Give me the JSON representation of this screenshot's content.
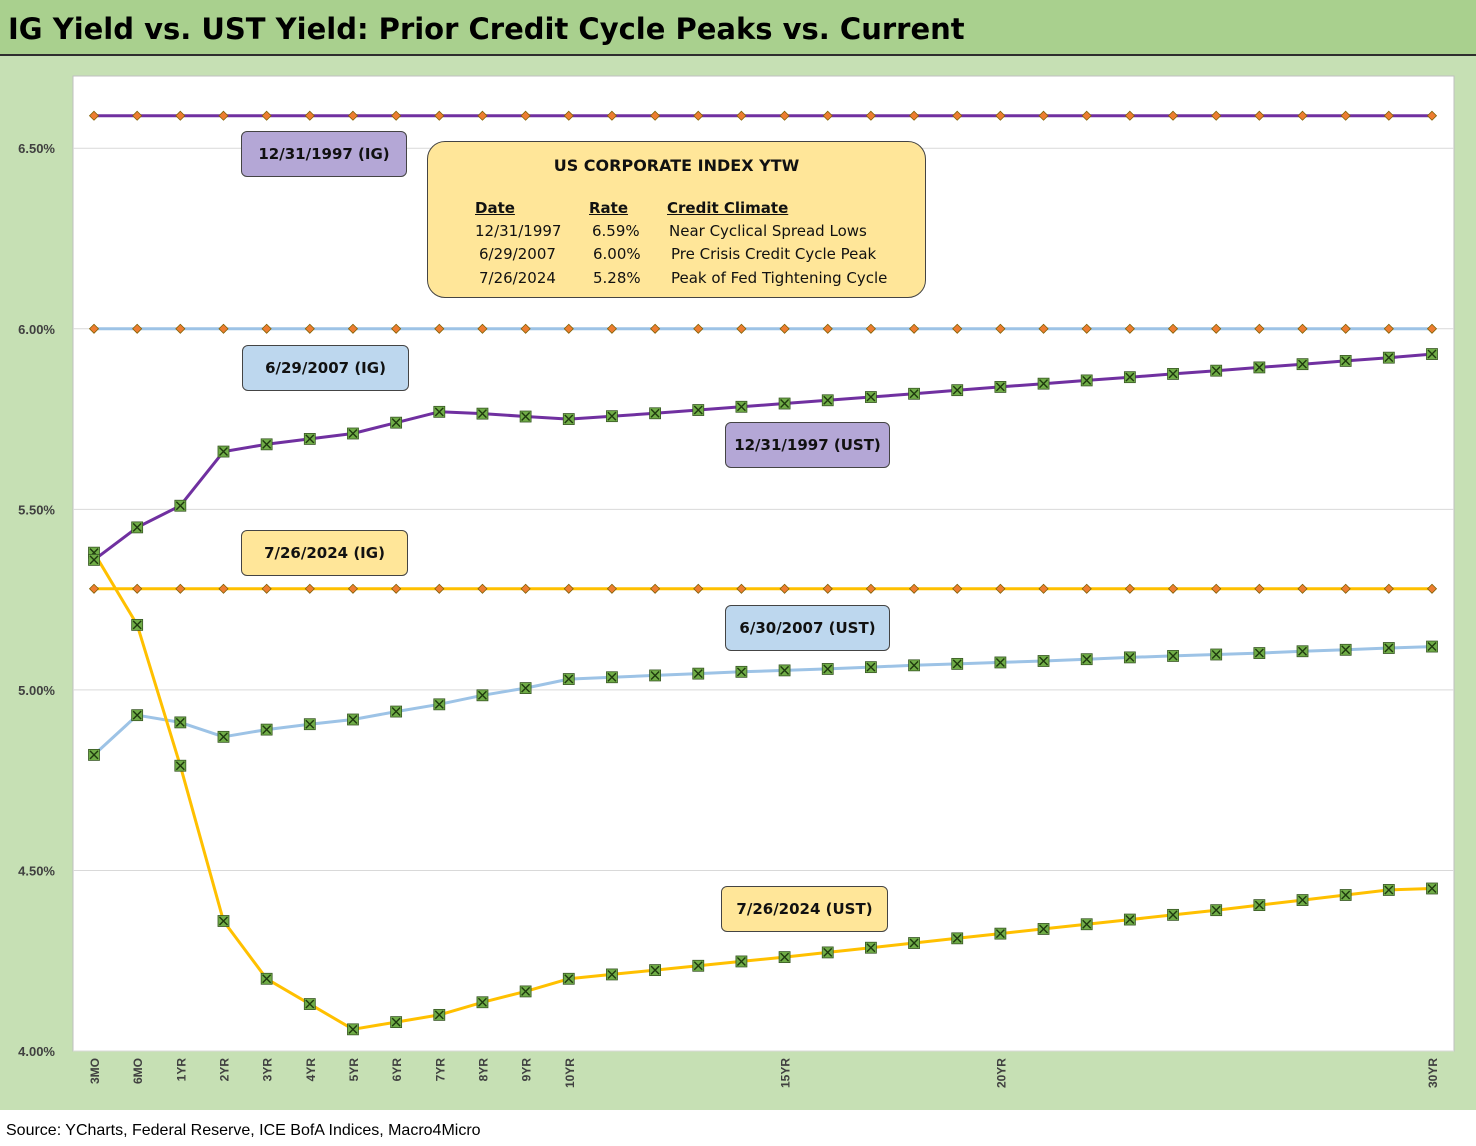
{
  "title": "IG Yield vs. UST Yield: Prior Credit Cycle Peaks vs. Current",
  "source": "Source: YCharts, Federal Reserve, ICE BofA Indices, Macro4Micro",
  "info_box": {
    "title": "US CORPORATE INDEX YTW",
    "headers": [
      "Date",
      "Rate",
      "Credit Climate"
    ],
    "rows": [
      {
        "date": "12/31/1997",
        "rate": "6.59%",
        "climate": "Near Cyclical Spread Lows"
      },
      {
        "date": "6/29/2007",
        "rate": "6.00%",
        "climate": "Pre Crisis Credit Cycle Peak"
      },
      {
        "date": "7/26/2024",
        "rate": "5.28%",
        "climate": "Peak of Fed Tightening Cycle"
      }
    ]
  },
  "chart_data": {
    "type": "line",
    "x": [
      0.25,
      0.5,
      1,
      2,
      3,
      4,
      5,
      6,
      7,
      8,
      9,
      10,
      11,
      12,
      13,
      14,
      15,
      16,
      17,
      18,
      19,
      20,
      21,
      22,
      23,
      24,
      25,
      26,
      27,
      28,
      29,
      30
    ],
    "x_tick_labels": [
      {
        "x": 0.25,
        "label": "3MO"
      },
      {
        "x": 0.5,
        "label": "6MO"
      },
      {
        "x": 1,
        "label": "1YR"
      },
      {
        "x": 2,
        "label": "2YR"
      },
      {
        "x": 3,
        "label": "3YR"
      },
      {
        "x": 4,
        "label": "4YR"
      },
      {
        "x": 5,
        "label": "5YR"
      },
      {
        "x": 6,
        "label": "6YR"
      },
      {
        "x": 7,
        "label": "7YR"
      },
      {
        "x": 8,
        "label": "8YR"
      },
      {
        "x": 9,
        "label": "9YR"
      },
      {
        "x": 10,
        "label": "10YR"
      },
      {
        "x": 15,
        "label": "15YR"
      },
      {
        "x": 20,
        "label": "20YR"
      },
      {
        "x": 30,
        "label": "30YR"
      }
    ],
    "ylim": [
      4.0,
      6.7
    ],
    "y_ticks": [
      4.0,
      4.5,
      5.0,
      5.5,
      6.0,
      6.5
    ],
    "y_tick_labels": [
      "4.00%",
      "4.50%",
      "5.00%",
      "5.50%",
      "6.00%",
      "6.50%"
    ],
    "grid": "horizontal",
    "series": [
      {
        "name": "12/31/1997 (IG)",
        "color": "#7030a0",
        "marker": "diamond",
        "values": [
          6.59,
          6.59,
          6.59,
          6.59,
          6.59,
          6.59,
          6.59,
          6.59,
          6.59,
          6.59,
          6.59,
          6.59,
          6.59,
          6.59,
          6.59,
          6.59,
          6.59,
          6.59,
          6.59,
          6.59,
          6.59,
          6.59,
          6.59,
          6.59,
          6.59,
          6.59,
          6.59,
          6.59,
          6.59,
          6.59,
          6.59,
          6.59
        ]
      },
      {
        "name": "6/29/2007 (IG)",
        "color": "#9dc3e6",
        "marker": "diamond",
        "values": [
          6.0,
          6.0,
          6.0,
          6.0,
          6.0,
          6.0,
          6.0,
          6.0,
          6.0,
          6.0,
          6.0,
          6.0,
          6.0,
          6.0,
          6.0,
          6.0,
          6.0,
          6.0,
          6.0,
          6.0,
          6.0,
          6.0,
          6.0,
          6.0,
          6.0,
          6.0,
          6.0,
          6.0,
          6.0,
          6.0,
          6.0,
          6.0
        ]
      },
      {
        "name": "7/26/2024 (IG)",
        "color": "#ffc000",
        "marker": "diamond",
        "values": [
          5.28,
          5.28,
          5.28,
          5.28,
          5.28,
          5.28,
          5.28,
          5.28,
          5.28,
          5.28,
          5.28,
          5.28,
          5.28,
          5.28,
          5.28,
          5.28,
          5.28,
          5.28,
          5.28,
          5.28,
          5.28,
          5.28,
          5.28,
          5.28,
          5.28,
          5.28,
          5.28,
          5.28,
          5.28,
          5.28,
          5.28,
          5.28
        ]
      },
      {
        "name": "12/31/1997 (UST)",
        "color": "#7030a0",
        "marker": "x",
        "values": [
          5.36,
          5.45,
          5.51,
          5.66,
          5.68,
          5.695,
          5.71,
          5.74,
          5.77,
          5.765,
          5.757,
          5.75,
          5.758,
          5.766,
          5.775,
          5.784,
          5.793,
          5.802,
          5.811,
          5.82,
          5.83,
          5.839,
          5.848,
          5.857,
          5.866,
          5.875,
          5.884,
          5.893,
          5.902,
          5.911,
          5.92,
          5.93
        ]
      },
      {
        "name": "6/30/2007 (UST)",
        "color": "#9dc3e6",
        "marker": "x",
        "values": [
          4.82,
          4.93,
          4.91,
          4.87,
          4.89,
          4.905,
          4.918,
          4.94,
          4.96,
          4.985,
          5.005,
          5.03,
          5.035,
          5.04,
          5.045,
          5.05,
          5.054,
          5.058,
          5.063,
          5.068,
          5.072,
          5.076,
          5.08,
          5.085,
          5.09,
          5.094,
          5.098,
          5.102,
          5.107,
          5.111,
          5.116,
          5.12
        ]
      },
      {
        "name": "7/26/2024 (UST)",
        "color": "#ffc000",
        "marker": "x",
        "values": [
          5.38,
          5.18,
          4.79,
          4.36,
          4.2,
          4.13,
          4.06,
          4.08,
          4.1,
          4.135,
          4.165,
          4.2,
          4.212,
          4.224,
          4.236,
          4.248,
          4.26,
          4.273,
          4.286,
          4.299,
          4.312,
          4.325,
          4.338,
          4.351,
          4.364,
          4.377,
          4.39,
          4.404,
          4.418,
          4.432,
          4.446,
          4.45
        ]
      }
    ]
  }
}
